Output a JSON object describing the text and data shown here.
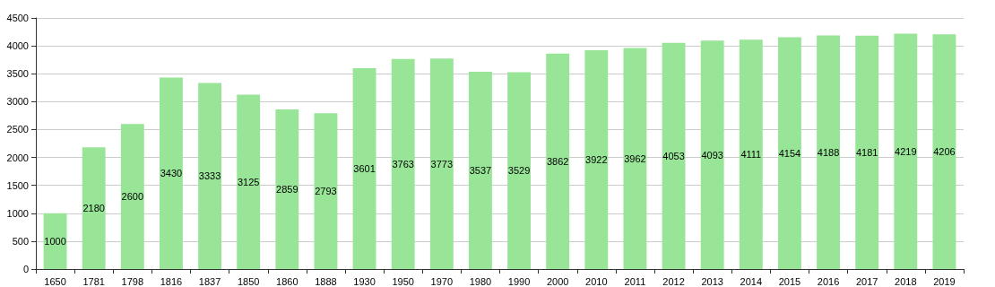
{
  "chart_data": {
    "type": "bar",
    "categories": [
      "1650",
      "1781",
      "1798",
      "1816",
      "1837",
      "1850",
      "1860",
      "1888",
      "1930",
      "1950",
      "1970",
      "1980",
      "1990",
      "2000",
      "2010",
      "2011",
      "2012",
      "2013",
      "2014",
      "2015",
      "2016",
      "2017",
      "2018",
      "2019"
    ],
    "values": [
      1000,
      2180,
      2600,
      3430,
      3333,
      3125,
      2859,
      2793,
      3601,
      3763,
      3773,
      3537,
      3529,
      3862,
      3922,
      3962,
      4053,
      4093,
      4111,
      4154,
      4188,
      4181,
      4219,
      4206
    ],
    "color": "#98e598",
    "ylim": [
      0,
      4500
    ],
    "yticks": [
      0,
      500,
      1000,
      1500,
      2000,
      2500,
      3000,
      3500,
      4000,
      4500
    ],
    "grid": "y",
    "data_labels": true
  }
}
